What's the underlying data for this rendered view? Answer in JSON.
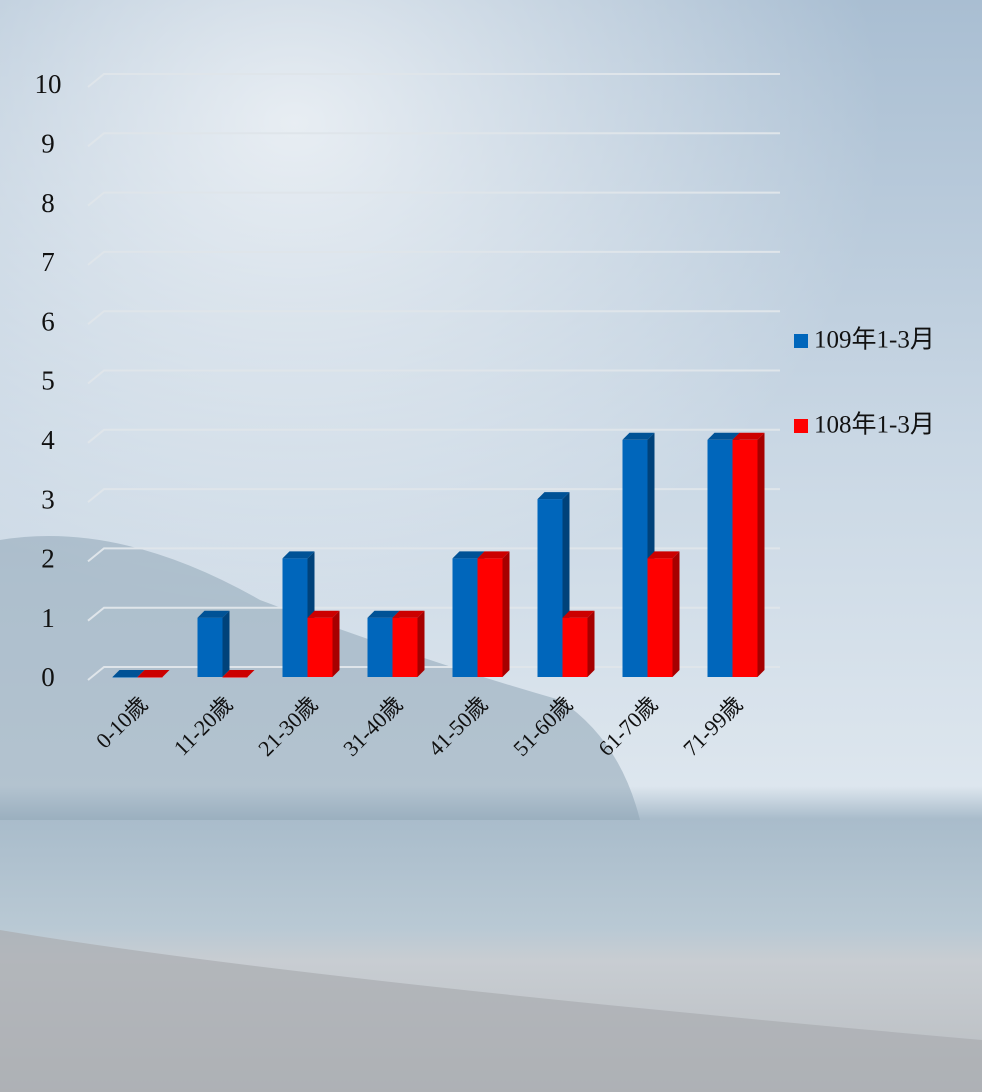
{
  "chart_data": {
    "type": "bar",
    "categories": [
      "0-10歲",
      "11-20歲",
      "21-30歲",
      "31-40歲",
      "41-50歲",
      "51-60歲",
      "61-70歲",
      "71-99歲"
    ],
    "series": [
      {
        "name": "109年1-3月",
        "color": "#0066bb",
        "values": [
          0,
          1,
          2,
          1,
          2,
          3,
          4,
          4
        ]
      },
      {
        "name": "108年1-3月",
        "color": "#ff0000",
        "values": [
          0,
          0,
          1,
          1,
          2,
          1,
          2,
          4
        ]
      }
    ],
    "ylim": [
      0,
      10
    ],
    "yticks": [
      0,
      1,
      2,
      3,
      4,
      5,
      6,
      7,
      8,
      9,
      10
    ],
    "grid": true
  }
}
